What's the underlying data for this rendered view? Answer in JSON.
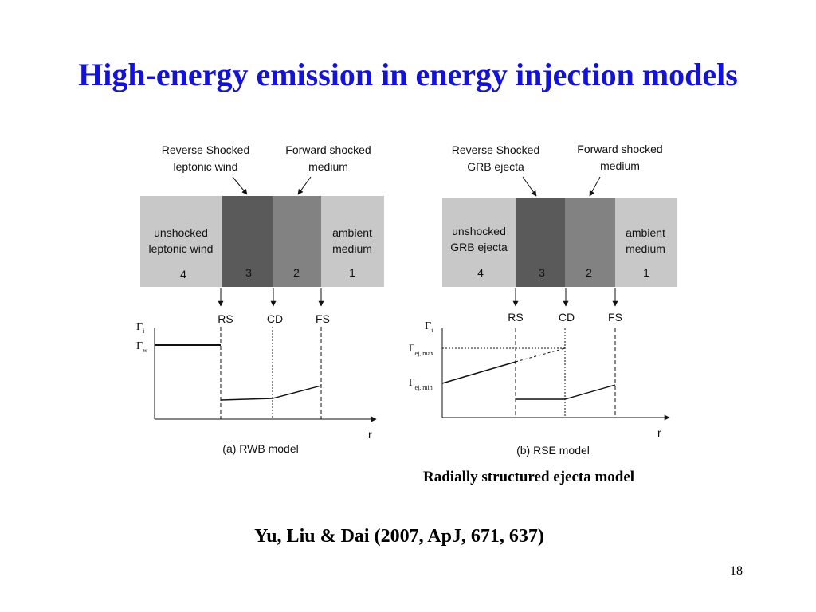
{
  "slide": {
    "title": "High-energy emission in energy injection models",
    "rse_caption": "Radially structured ejecta model",
    "citation": "Yu, Liu & Dai (2007, ApJ, 671, 637)",
    "page_number": "18"
  },
  "panels": {
    "rwb": {
      "label_rs_1": "Reverse Shocked",
      "label_rs_2": "leptonic wind",
      "label_fs_1": "Forward shocked",
      "label_fs_2": "medium",
      "region4_1": "unshocked",
      "region4_2": "leptonic wind",
      "region4_num": "4",
      "region3_num": "3",
      "region2_num": "2",
      "region1_1": "ambient",
      "region1_2": "medium",
      "region1_num": "1",
      "rs": "RS",
      "cd": "CD",
      "fs": "FS",
      "y_gamma": "Γ",
      "y_sub": "i",
      "w_gamma": "Γ",
      "w_sub": "w",
      "x_label": "r",
      "caption": "(a) RWB model"
    },
    "rse": {
      "label_rs_1": "Reverse Shocked",
      "label_rs_2": "GRB ejecta",
      "label_fs_1": "Forward shocked",
      "label_fs_2": "medium",
      "region4_1": "unshocked",
      "region4_2": "GRB ejecta",
      "region4_num": "4",
      "region3_num": "3",
      "region2_num": "2",
      "region1_1": "ambient",
      "region1_2": "medium",
      "region1_num": "1",
      "rs": "RS",
      "cd": "CD",
      "fs": "FS",
      "y_gamma": "Γ",
      "y_sub": "i",
      "max_gamma": "Γ",
      "max_sub": "ej, max",
      "min_gamma": "Γ",
      "min_sub": "ej, min",
      "x_label": "r",
      "caption": "(b) RSE model"
    }
  },
  "colors": {
    "title": "#1212d8",
    "region_light": "#c8c8c8",
    "region_dark": "#5a5a5a",
    "region_mid": "#828282"
  }
}
